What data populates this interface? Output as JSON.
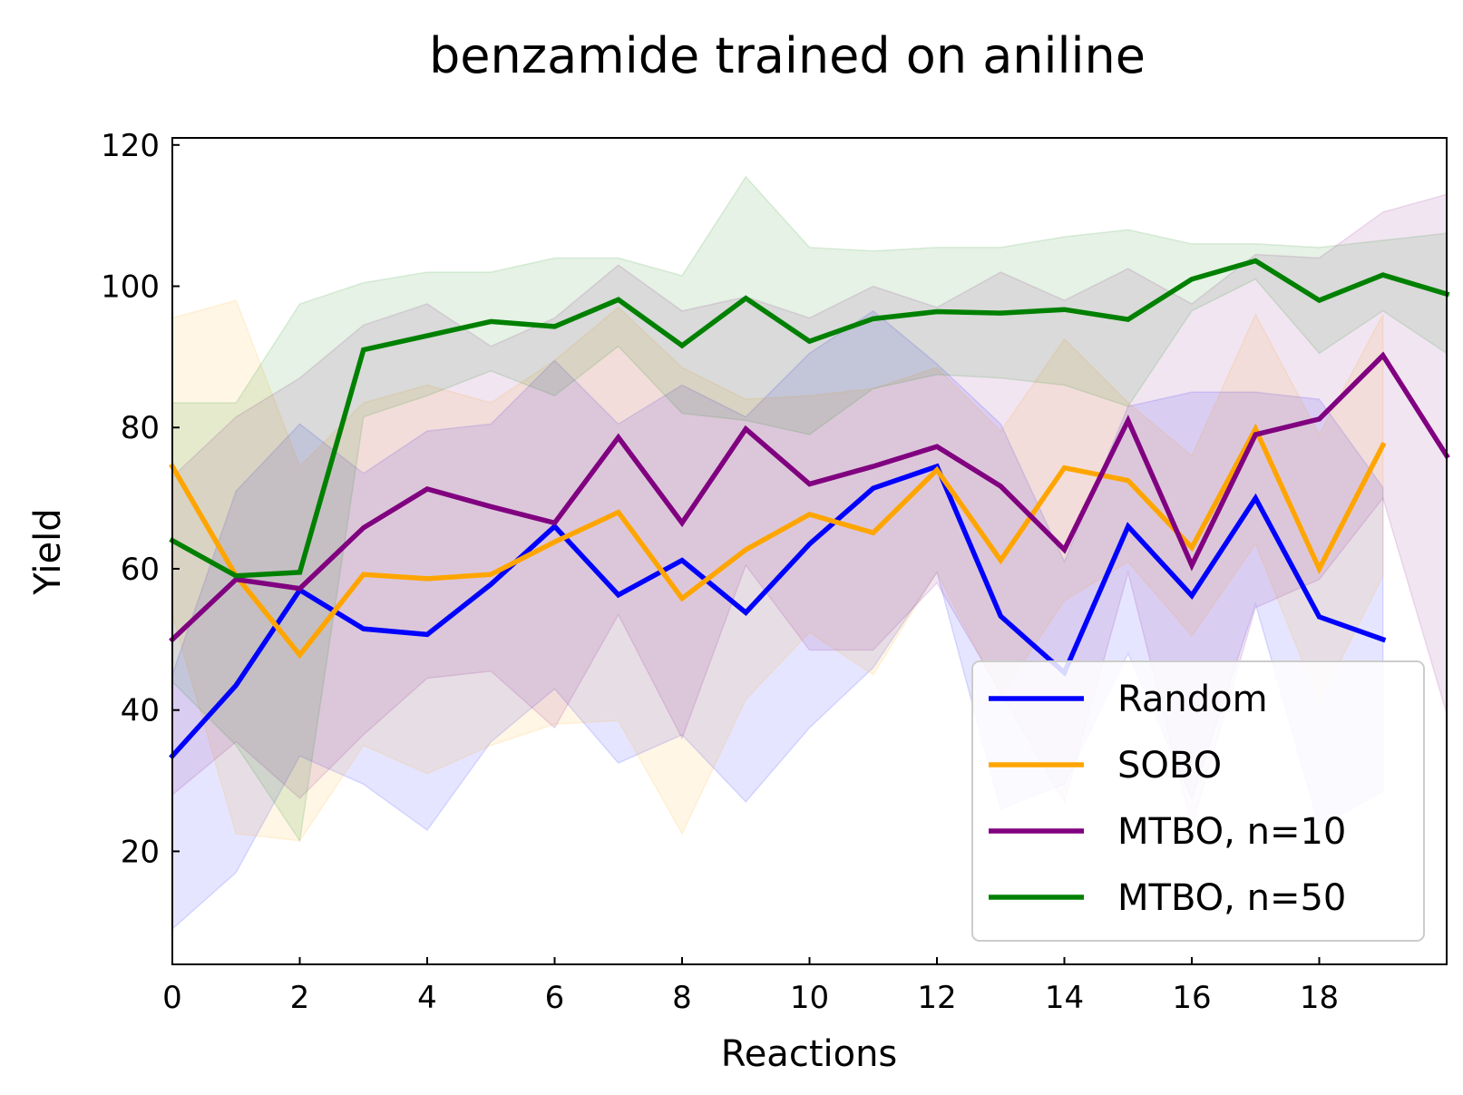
{
  "chart_data": {
    "type": "line",
    "title": "benzamide trained on aniline",
    "xlabel": "Reactions",
    "ylabel": "Yield",
    "xlim": [
      0,
      20
    ],
    "ylim": [
      4,
      121
    ],
    "xticks": [
      0,
      2,
      4,
      6,
      8,
      10,
      12,
      14,
      16,
      18
    ],
    "yticks": [
      20,
      40,
      60,
      80,
      100,
      120
    ],
    "grid": false,
    "legend_position": "lower-right",
    "series": [
      {
        "name": "Random",
        "color": "#0000ff",
        "x": [
          0,
          1,
          2,
          3,
          4,
          5,
          6,
          7,
          8,
          9,
          10,
          11,
          12,
          13,
          14,
          15,
          16,
          17,
          18,
          19
        ],
        "mean": [
          33.5,
          43.5,
          57,
          51.5,
          50.7,
          57.8,
          66,
          56.3,
          61.2,
          53.8,
          63.5,
          71.4,
          74.5,
          53.3,
          45.3,
          66,
          56.2,
          70,
          53.2,
          50
        ],
        "upper": [
          45,
          71,
          80.5,
          73.5,
          79.5,
          80.5,
          89.5,
          80.5,
          86,
          81.5,
          90.5,
          96.5,
          89,
          80.5,
          61,
          83,
          85,
          85,
          84,
          71.5
        ],
        "lower": [
          9,
          17,
          33.5,
          29.5,
          23,
          35.5,
          43,
          32.5,
          36.5,
          27,
          37.5,
          46,
          59.5,
          26,
          29.5,
          48,
          27.5,
          55,
          23.5,
          28.5
        ]
      },
      {
        "name": "SOBO",
        "color": "#ffa500",
        "x": [
          0,
          1,
          2,
          3,
          4,
          5,
          6,
          7,
          8,
          9,
          10,
          11,
          12,
          13,
          14,
          15,
          16,
          17,
          18,
          19
        ],
        "mean": [
          74.5,
          59,
          47.8,
          59.2,
          58.6,
          59.2,
          63.8,
          68,
          55.8,
          62.7,
          67.7,
          65.1,
          74,
          61.2,
          74.3,
          72.5,
          63,
          79.8,
          60,
          77.5
        ],
        "upper": [
          95.5,
          98,
          74.5,
          83.5,
          86,
          83.5,
          89.5,
          97,
          88.5,
          84,
          84.5,
          85.5,
          88.5,
          79.5,
          92.5,
          83.5,
          76,
          96,
          79,
          96
        ],
        "lower": [
          53.5,
          22.5,
          21.5,
          35,
          31,
          35,
          38,
          38.5,
          22.5,
          41.5,
          51,
          45,
          59.5,
          42,
          55.5,
          61,
          50.5,
          63.5,
          41,
          59
        ]
      },
      {
        "name": "MTBO, n=10",
        "color": "#800080",
        "x": [
          0,
          1,
          2,
          3,
          4,
          5,
          6,
          7,
          8,
          9,
          10,
          11,
          12,
          13,
          14,
          15,
          16,
          17,
          18,
          19,
          20
        ],
        "mean": [
          50,
          58.5,
          57.2,
          65.8,
          71.3,
          68.8,
          66.5,
          78.6,
          66.5,
          79.8,
          72,
          74.5,
          77.3,
          71.7,
          62.7,
          81,
          60.5,
          79,
          81.2,
          90.2,
          76
        ],
        "upper": [
          73,
          81.5,
          87,
          94.5,
          97.5,
          91.5,
          95.5,
          103,
          96.5,
          98.5,
          95.5,
          100,
          97,
          102,
          98,
          102.5,
          97.5,
          104.5,
          104,
          110.5,
          113
        ],
        "lower": [
          28,
          35.5,
          27.5,
          36.5,
          44.5,
          45.5,
          37.5,
          53.5,
          36,
          60.5,
          48.5,
          48.5,
          58,
          42.5,
          27,
          59.5,
          23.5,
          54.5,
          58.5,
          70,
          39.5
        ]
      },
      {
        "name": "MTBO, n=50",
        "color": "#008000",
        "x": [
          0,
          1,
          2,
          3,
          4,
          5,
          6,
          7,
          8,
          9,
          10,
          11,
          12,
          13,
          14,
          15,
          16,
          17,
          18,
          19,
          20
        ],
        "mean": [
          64,
          59,
          59.5,
          91,
          93,
          95,
          94.3,
          98.1,
          91.6,
          98.3,
          92.2,
          95.4,
          96.4,
          96.2,
          96.7,
          95.3,
          101,
          103.6,
          98,
          101.6,
          98.9
        ],
        "upper": [
          83.5,
          83.5,
          97.5,
          100.5,
          102,
          102,
          104,
          104,
          101.5,
          115.5,
          105.5,
          105,
          105.5,
          105.5,
          107,
          108,
          106,
          106,
          105.5,
          106.5,
          107.5
        ],
        "lower": [
          44,
          35,
          21.5,
          81.5,
          84.5,
          88,
          84.5,
          91.5,
          82,
          81,
          79,
          85.5,
          87.5,
          87,
          86,
          83,
          96.5,
          101,
          90.5,
          96.5,
          90.5
        ]
      }
    ]
  }
}
